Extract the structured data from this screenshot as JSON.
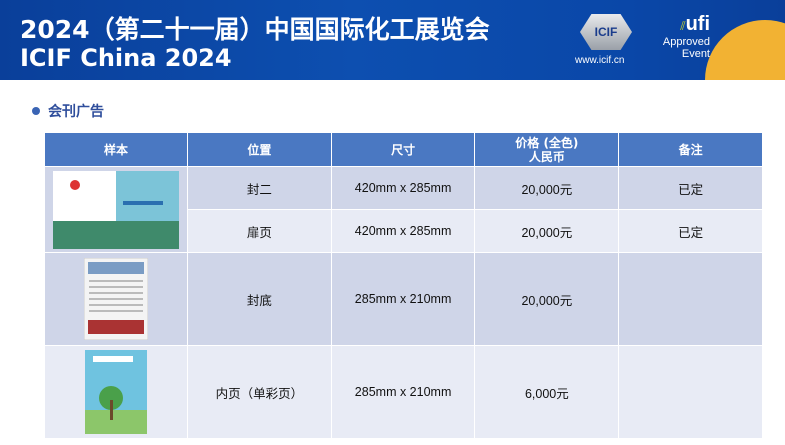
{
  "banner": {
    "title_cn": "2024（第二十一届）中国国际化工展览会",
    "title_en": "ICIF China 2024",
    "logo_text": "ICIF",
    "website": "www.icif.cn",
    "ufi": "ufi",
    "ufi_approved": "Approved",
    "ufi_event": "Event",
    "colors": {
      "primary": "#0d4fb0",
      "accent": "#f2b233"
    }
  },
  "section": {
    "title": "会刊广告"
  },
  "table": {
    "headers": [
      "样本",
      "位置",
      "尺寸",
      "价格 (全色)",
      "人民币",
      "备注"
    ],
    "rows": [
      {
        "position": "封二",
        "size": "420mm x 285mm",
        "price": "20,000元",
        "note": "已定"
      },
      {
        "position": "扉页",
        "size": "420mm x 285mm",
        "price": "20,000元",
        "note": "已定"
      },
      {
        "position": "封底",
        "size": "285mm x 210mm",
        "price": "20,000元",
        "note": ""
      },
      {
        "position": "内页（单彩页）",
        "size": "285mm x 210mm",
        "price": "6,000元",
        "note": ""
      }
    ]
  }
}
